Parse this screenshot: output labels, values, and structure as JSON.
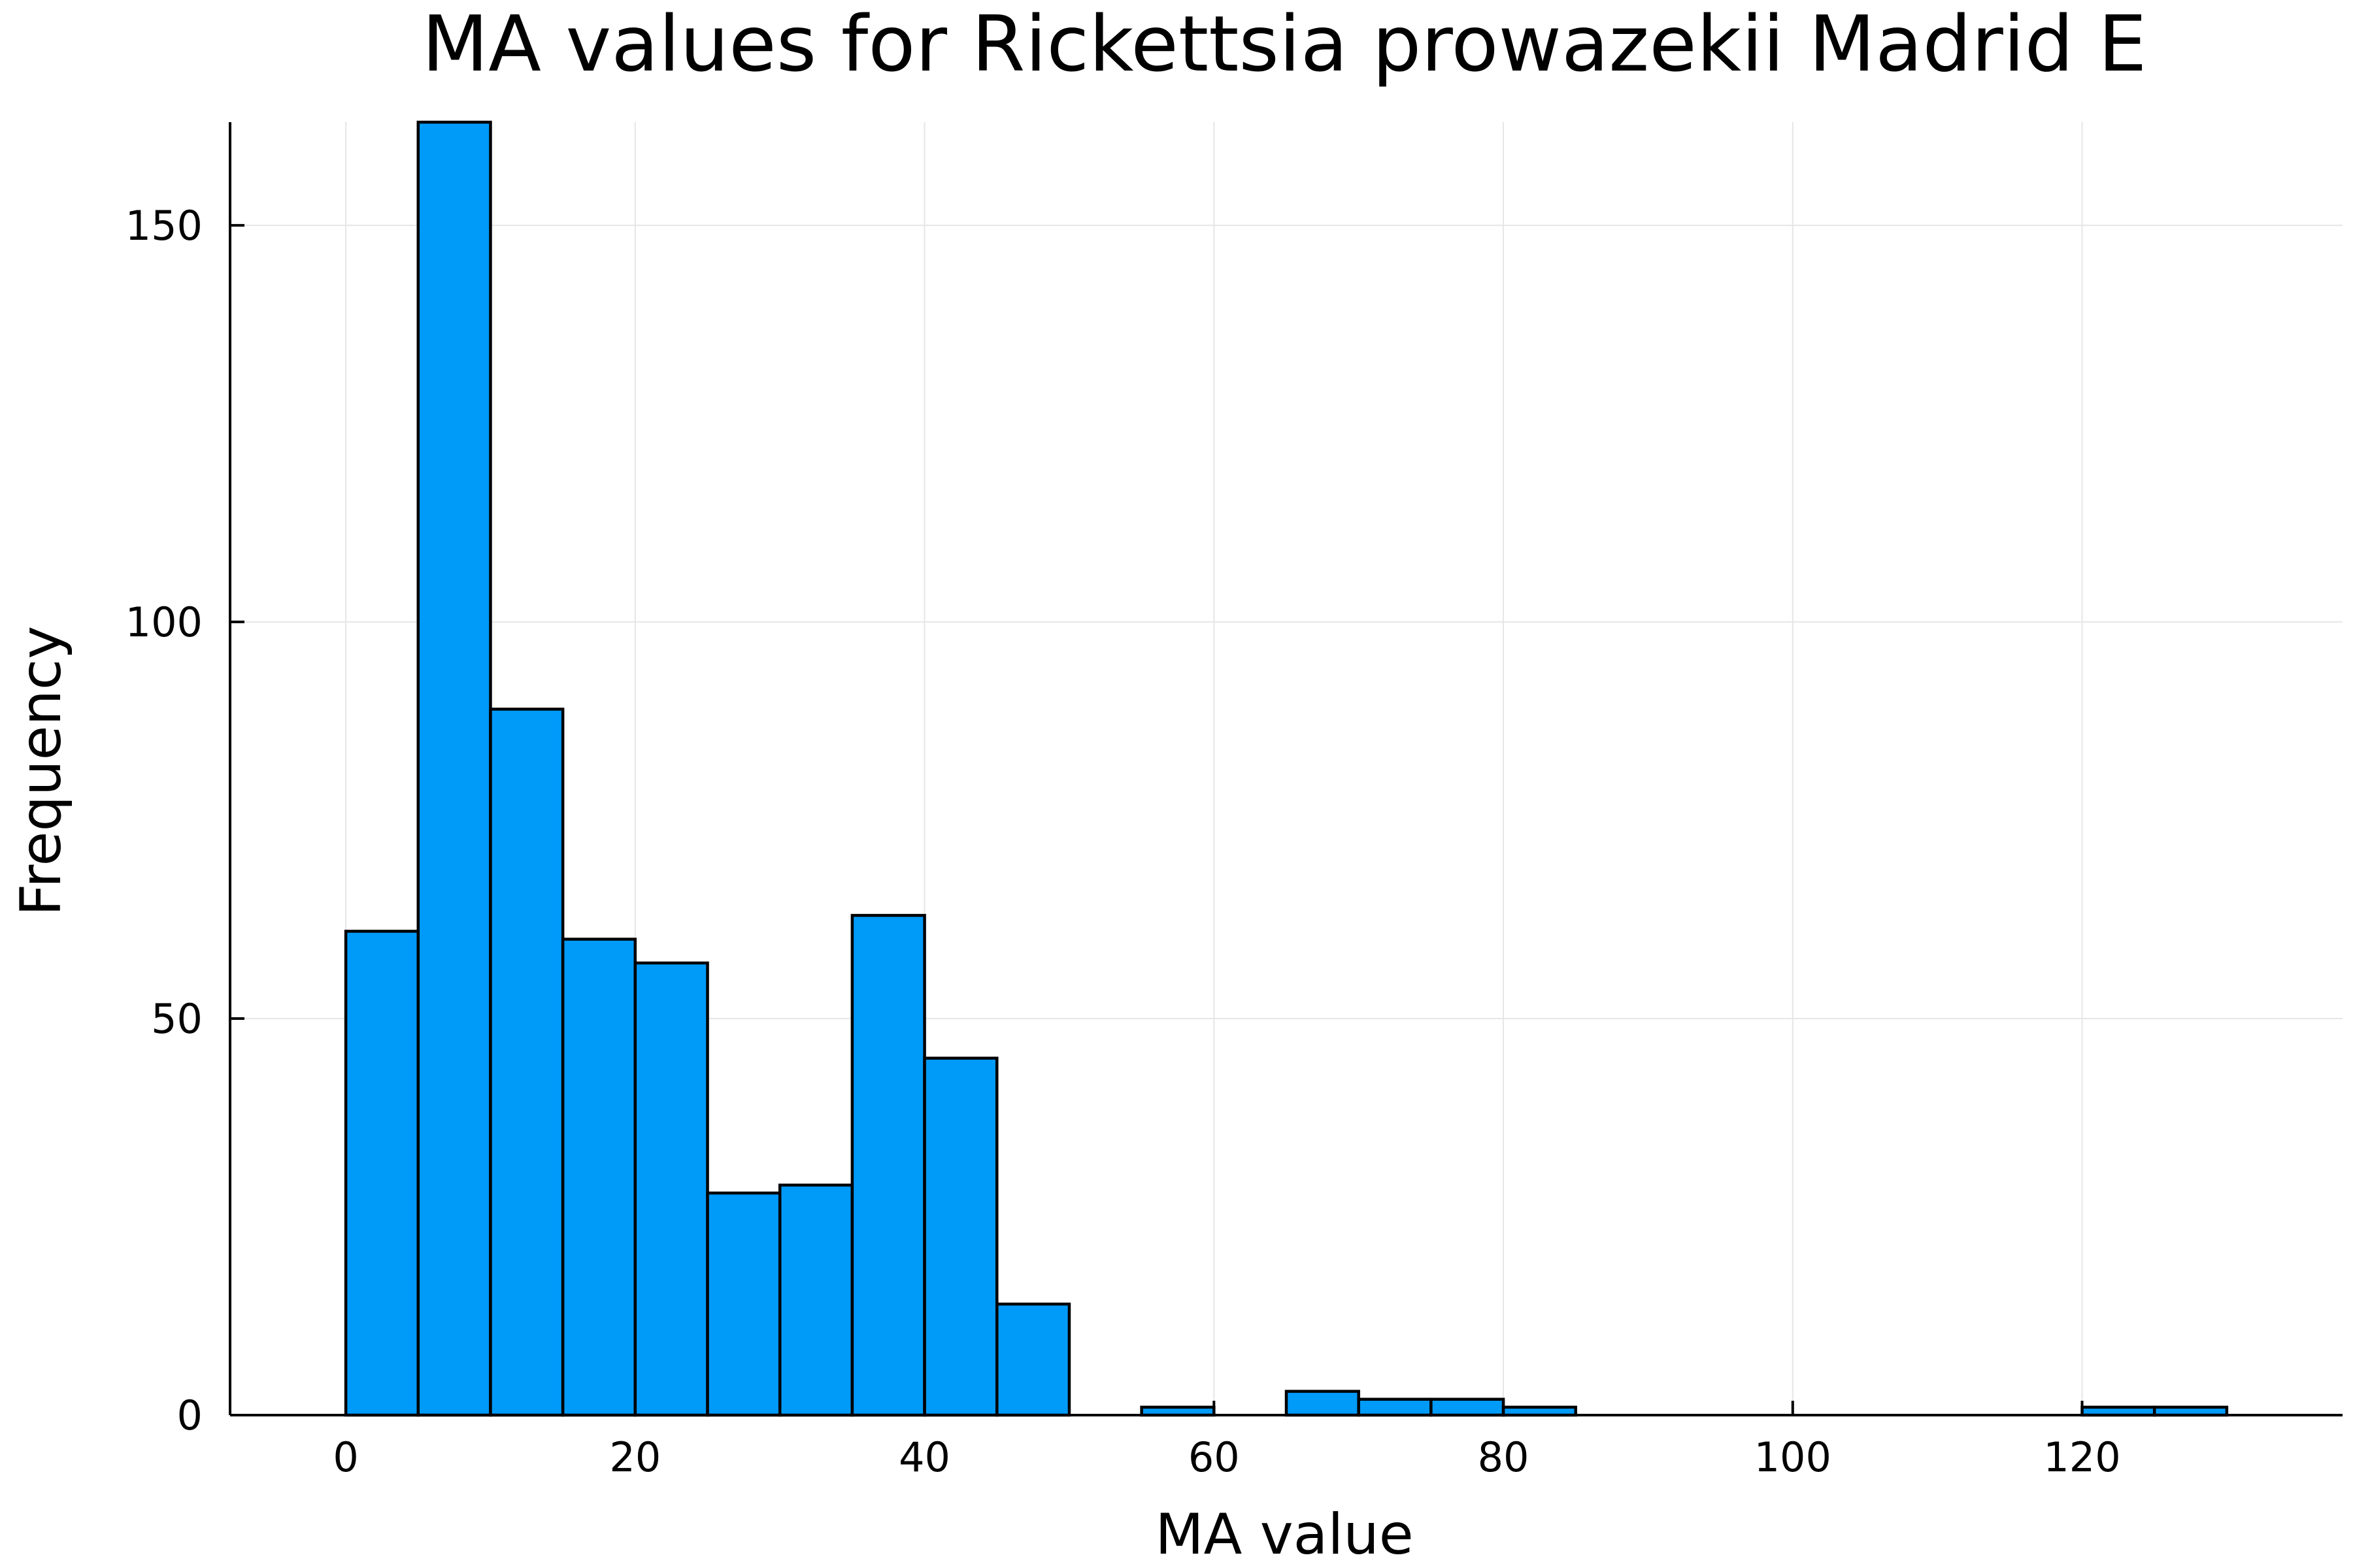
{
  "chart_data": {
    "type": "bar",
    "title": "MA values for Rickettsia prowazekii Madrid E",
    "xlabel": "MA value",
    "ylabel": "Frequency",
    "bin_width": 5,
    "bins": [
      {
        "start": 0,
        "end": 5,
        "count": 61
      },
      {
        "start": 5,
        "end": 10,
        "count": 163
      },
      {
        "start": 10,
        "end": 15,
        "count": 89
      },
      {
        "start": 15,
        "end": 20,
        "count": 60
      },
      {
        "start": 20,
        "end": 25,
        "count": 57
      },
      {
        "start": 25,
        "end": 30,
        "count": 28
      },
      {
        "start": 30,
        "end": 35,
        "count": 29
      },
      {
        "start": 35,
        "end": 40,
        "count": 63
      },
      {
        "start": 40,
        "end": 45,
        "count": 45
      },
      {
        "start": 45,
        "end": 50,
        "count": 14
      },
      {
        "start": 55,
        "end": 60,
        "count": 1
      },
      {
        "start": 65,
        "end": 70,
        "count": 3
      },
      {
        "start": 70,
        "end": 75,
        "count": 2
      },
      {
        "start": 75,
        "end": 80,
        "count": 2
      },
      {
        "start": 80,
        "end": 85,
        "count": 1
      },
      {
        "start": 120,
        "end": 125,
        "count": 1
      },
      {
        "start": 125,
        "end": 130,
        "count": 1
      }
    ],
    "xlim": [
      -8,
      138
    ],
    "ylim": [
      0,
      163
    ],
    "x_ticks": [
      0,
      20,
      40,
      60,
      80,
      100,
      120
    ],
    "y_ticks": [
      0,
      50,
      100,
      150
    ],
    "grid": true,
    "legend": "none",
    "bar_color": "#009af9",
    "edge_color": "#000000"
  }
}
